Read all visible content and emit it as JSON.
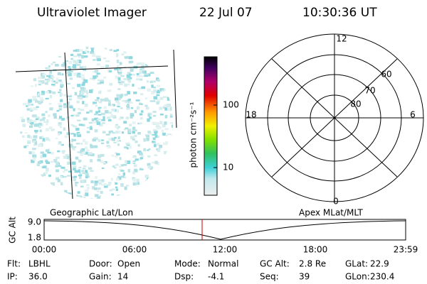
{
  "header": {
    "instrument": "Ultraviolet Imager",
    "date": "22 Jul 07",
    "time": "10:30:36 UT"
  },
  "colorbar": {
    "label": "photon cm⁻²s⁻¹",
    "ticks": [
      "100",
      "10"
    ]
  },
  "polar": {
    "mlt_labels": [
      "12",
      "18",
      "6",
      "0"
    ],
    "lat_labels": [
      "60",
      "70",
      "80"
    ]
  },
  "timeline": {
    "axis_label": "GC Alt",
    "y_labels": [
      "9.0",
      "1.8"
    ],
    "left_caption": "Geographic Lat/Lon",
    "right_caption": "Apex MLat/MLT",
    "x_labels": [
      "00:00",
      "06:00",
      "12:00",
      "18:00",
      "23:59"
    ]
  },
  "info": {
    "rows": [
      [
        {
          "label": "Flt:",
          "value": "LBHL"
        },
        {
          "label": "Door:",
          "value": "Open"
        },
        {
          "label": "Mode:",
          "value": "Normal"
        },
        {
          "label": "GC Alt:",
          "value": "2.8 Re"
        },
        {
          "label": "GLat:",
          "value": "22.9"
        }
      ],
      [
        {
          "label": "IP:",
          "value": "36.0"
        },
        {
          "label": "Gain:",
          "value": "14"
        },
        {
          "label": "Dsp:",
          "value": "-4.1"
        },
        {
          "label": "Seq:",
          "value": "39"
        },
        {
          "label": "GLon:",
          "value": "230.4"
        }
      ]
    ]
  }
}
